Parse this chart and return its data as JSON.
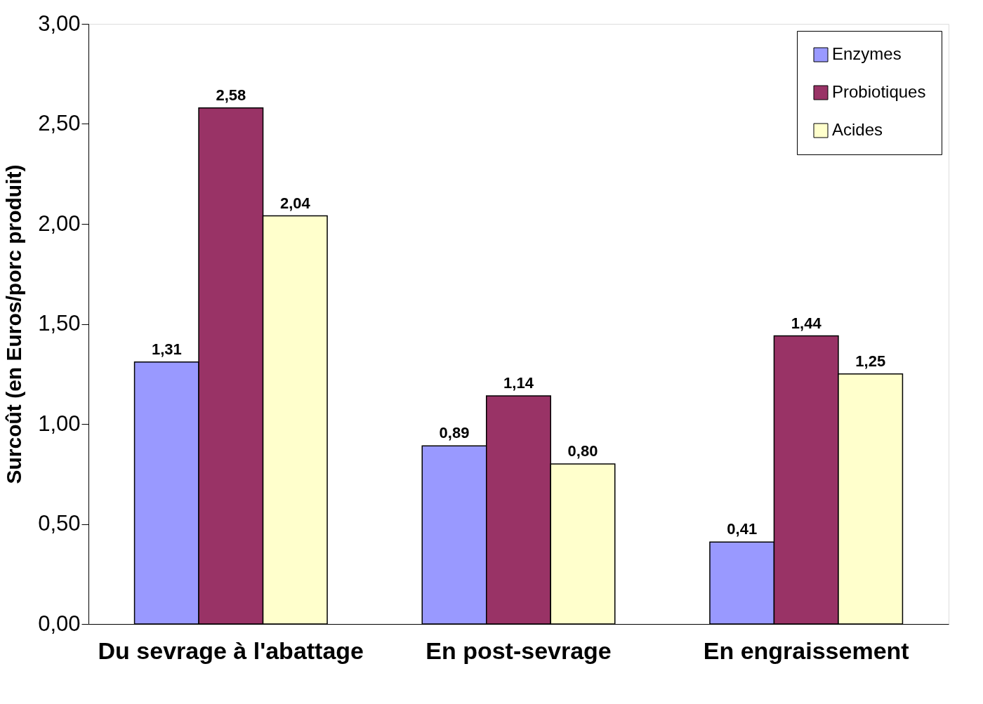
{
  "chart_data": {
    "type": "bar",
    "ylabel": "Surcoût (en Euros/porc produit)",
    "categories": [
      "Du sevrage à l'abattage",
      "En post-sevrage",
      "En engraissement"
    ],
    "series": [
      {
        "name": "Enzymes",
        "color": "#9999ff",
        "values": [
          1.31,
          0.89,
          0.41
        ],
        "value_labels": [
          "1,31",
          "0,89",
          "0,41"
        ]
      },
      {
        "name": "Probiotiques",
        "color": "#993366",
        "values": [
          2.58,
          1.14,
          1.44
        ],
        "value_labels": [
          "2,58",
          "1,14",
          "1,44"
        ]
      },
      {
        "name": "Acides",
        "color": "#ffffcc",
        "values": [
          2.04,
          0.8,
          1.25
        ],
        "value_labels": [
          "2,04",
          "0,80",
          "1,25"
        ]
      }
    ],
    "ylim": [
      0,
      3
    ],
    "yticks": [
      {
        "value": 0,
        "label": "0,00"
      },
      {
        "value": 0.5,
        "label": "0,50"
      },
      {
        "value": 1,
        "label": "1,00"
      },
      {
        "value": 1.5,
        "label": "1,50"
      },
      {
        "value": 2,
        "label": "2,00"
      },
      {
        "value": 2.5,
        "label": "2,50"
      },
      {
        "value": 3,
        "label": "3,00"
      }
    ],
    "grid": false,
    "legend": "top right"
  }
}
